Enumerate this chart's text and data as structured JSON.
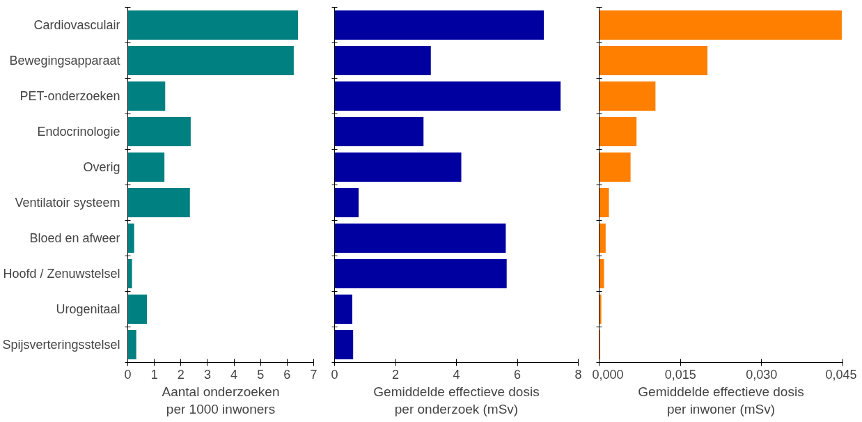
{
  "chart_data": [
    {
      "type": "bar",
      "orientation": "horizontal",
      "categories": [
        "Cardiovasculair",
        "Bewegingsapparaat",
        "PET-onderzoeken",
        "Endocrinologie",
        "Overig",
        "Ventilatoir systeem",
        "Bloed en afweer",
        "Hoofd / Zenuwstelsel",
        "Urogenitaal",
        "Spijsverteringsstelsel"
      ],
      "values": [
        6.41,
        6.25,
        1.41,
        2.37,
        1.38,
        2.34,
        0.24,
        0.16,
        0.72,
        0.32
      ],
      "color": "#008080",
      "xlabel": "Aantal onderzoeken\nper 1000 inwoners",
      "xlim": [
        0,
        7
      ],
      "xticks": [
        0,
        1,
        2,
        3,
        4,
        5,
        6,
        7
      ],
      "grid": false
    },
    {
      "type": "bar",
      "orientation": "horizontal",
      "categories": [
        null,
        null,
        null,
        null,
        null,
        null,
        null,
        null,
        null,
        null
      ],
      "values": [
        6.87,
        3.16,
        7.42,
        2.92,
        4.16,
        0.79,
        5.62,
        5.65,
        0.58,
        0.61
      ],
      "color": "#0000a0",
      "xlabel": "Gemiddelde effectieve dosis\nper onderzoek (mSv)",
      "xlim": [
        0,
        8
      ],
      "xticks": [
        0,
        2,
        4,
        6,
        8
      ],
      "tick_labels": "x",
      "grid": false
    },
    {
      "type": "bar",
      "orientation": "horizontal",
      "categories": [
        null,
        null,
        null,
        null,
        null,
        null,
        null,
        null,
        null,
        null
      ],
      "values": [
        0.0448,
        0.02,
        0.0104,
        0.0069,
        0.0058,
        0.0018,
        0.0012,
        0.0009,
        0.0004,
        0.0002
      ],
      "color": "#ff8000",
      "xlabel": "Gemiddelde effectieve dosis\nper inwoner (mSv)",
      "xlim": [
        0,
        0.045
      ],
      "xticks": [
        {
          "value": 0,
          "label": "0,000"
        },
        {
          "value": 0.015,
          "label": "0,015"
        },
        {
          "value": 0.03,
          "label": "0,030"
        },
        {
          "value": 0.045,
          "label": "0,045"
        }
      ],
      "tick_labels": "x",
      "grid": false
    }
  ]
}
